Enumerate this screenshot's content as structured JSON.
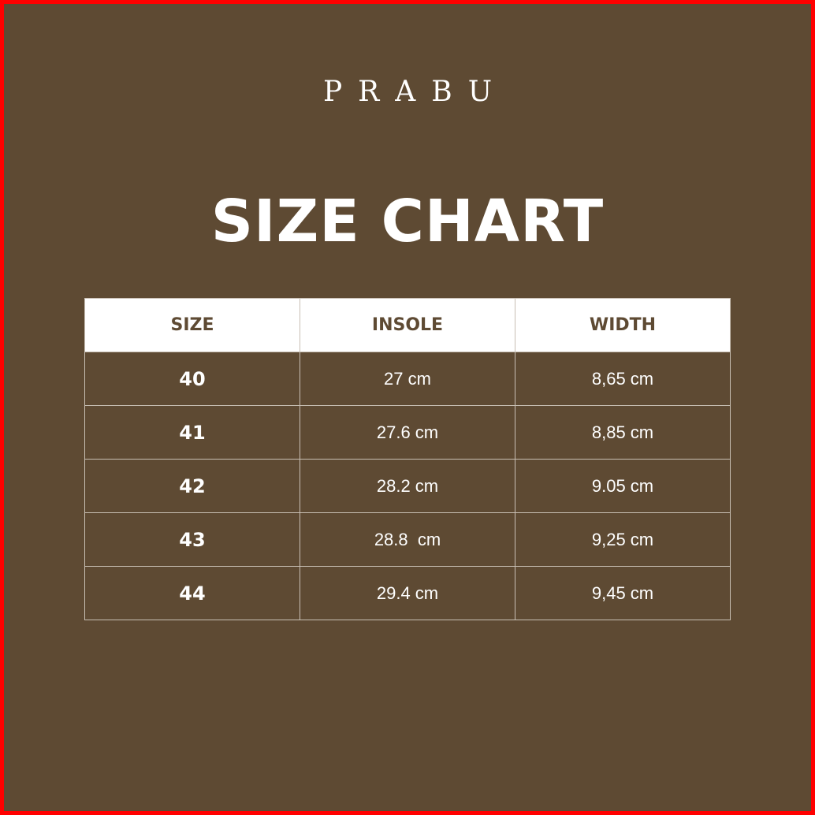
{
  "brand": "PRABU",
  "title": "SIZE CHART",
  "colors": {
    "background": "#5e4a33",
    "frame": "#ff0000",
    "header_bg": "#ffffff",
    "header_text": "#5e4a33"
  },
  "table": {
    "headers": [
      "SIZE",
      "INSOLE",
      "WIDTH"
    ],
    "rows": [
      [
        "40",
        "27 cm",
        "8,65 cm"
      ],
      [
        "41",
        "27.6 cm",
        "8,85 cm"
      ],
      [
        "42",
        "28.2 cm",
        "9.05 cm"
      ],
      [
        "43",
        "28.8  cm",
        "9,25 cm"
      ],
      [
        "44",
        "29.4 cm",
        "9,45 cm"
      ]
    ]
  }
}
